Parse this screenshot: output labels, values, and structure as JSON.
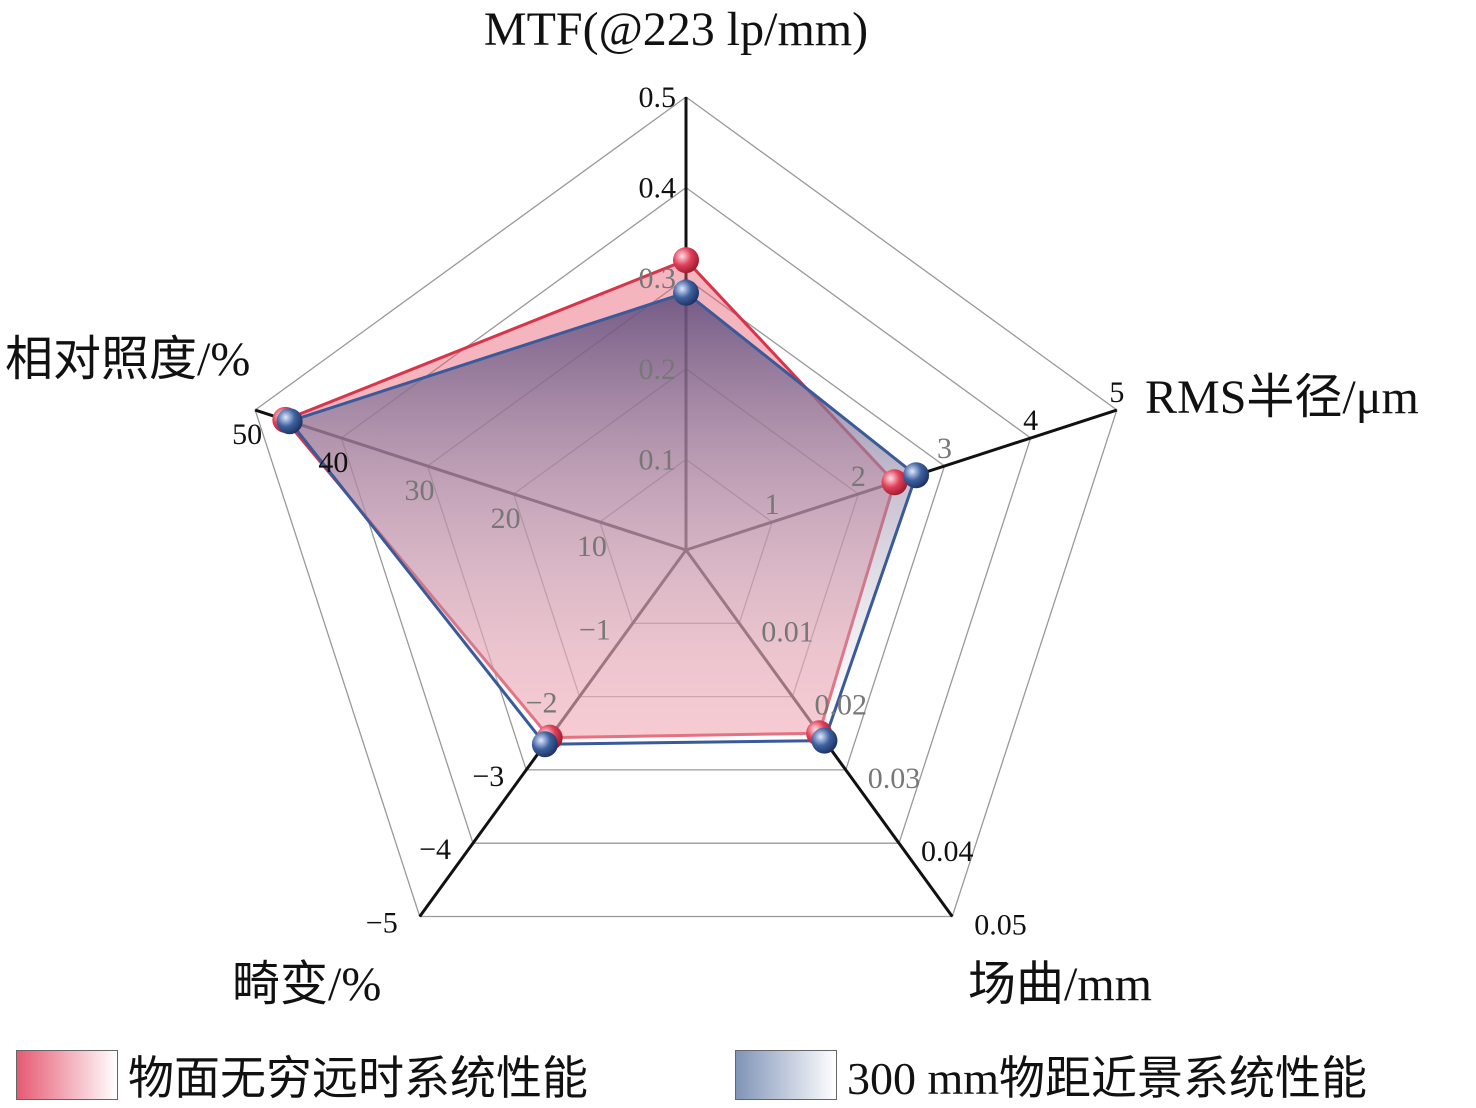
{
  "chart_data": {
    "type": "radar",
    "axes": [
      {
        "label": "MTF(@223 lp/mm)",
        "range": [
          0,
          0.5
        ],
        "ticks": [
          "0.1",
          "0.2",
          "0.3",
          "0.4",
          "0.5"
        ]
      },
      {
        "label": "RMS半径/μm",
        "range": [
          0,
          5
        ],
        "ticks": [
          "1",
          "2",
          "3",
          "4",
          "5"
        ]
      },
      {
        "label": "场曲/mm",
        "range": [
          0,
          0.05
        ],
        "ticks": [
          "0.01",
          "0.02",
          "0.03",
          "0.04",
          "0.05"
        ]
      },
      {
        "label": "畸变/%",
        "range": [
          0,
          -5
        ],
        "ticks": [
          "−1",
          "−2",
          "−3",
          "−4",
          "−5"
        ]
      },
      {
        "label": "相对照度/%",
        "range": [
          0,
          50
        ],
        "ticks": [
          "10",
          "20",
          "30",
          "40",
          "50"
        ]
      }
    ],
    "series": [
      {
        "name": "物面无穷远时系统性能",
        "values": [
          0.32,
          2.42,
          0.025,
          -2.56,
          46.5
        ],
        "color": "#d9344a"
      },
      {
        "name": "300 mm物距近景系统性能",
        "values": [
          0.284,
          2.67,
          0.026,
          -2.65,
          46.0
        ],
        "color": "#3a5a9a"
      }
    ],
    "legend": "bottom",
    "grid": true
  }
}
